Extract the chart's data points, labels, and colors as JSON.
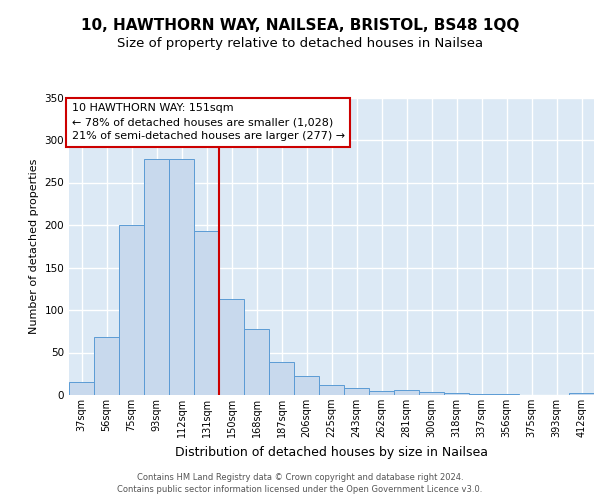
{
  "title1": "10, HAWTHORN WAY, NAILSEA, BRISTOL, BS48 1QQ",
  "title2": "Size of property relative to detached houses in Nailsea",
  "xlabel": "Distribution of detached houses by size in Nailsea",
  "ylabel": "Number of detached properties",
  "bin_labels": [
    "37sqm",
    "56sqm",
    "75sqm",
    "93sqm",
    "112sqm",
    "131sqm",
    "150sqm",
    "168sqm",
    "187sqm",
    "206sqm",
    "225sqm",
    "243sqm",
    "262sqm",
    "281sqm",
    "300sqm",
    "318sqm",
    "337sqm",
    "356sqm",
    "375sqm",
    "393sqm",
    "412sqm"
  ],
  "bin_values": [
    15,
    68,
    200,
    278,
    278,
    193,
    113,
    78,
    39,
    22,
    12,
    8,
    5,
    6,
    4,
    2,
    1,
    1,
    0,
    0,
    2
  ],
  "bar_color": "#c8d9ed",
  "bar_edge_color": "#5b9bd5",
  "red_line_index": 6,
  "ylim": [
    0,
    350
  ],
  "yticks": [
    0,
    50,
    100,
    150,
    200,
    250,
    300,
    350
  ],
  "annotation_title": "10 HAWTHORN WAY: 151sqm",
  "annotation_line1": "← 78% of detached houses are smaller (1,028)",
  "annotation_line2": "21% of semi-detached houses are larger (277) →",
  "footer1": "Contains HM Land Registry data © Crown copyright and database right 2024.",
  "footer2": "Contains public sector information licensed under the Open Government Licence v3.0.",
  "bg_color": "#ffffff",
  "plot_bg_color": "#dce9f5",
  "grid_color": "#ffffff",
  "title1_fontsize": 11,
  "title2_fontsize": 9.5,
  "ylabel_fontsize": 8,
  "xlabel_fontsize": 9,
  "annotation_fontsize": 8,
  "tick_fontsize": 7,
  "footer_fontsize": 6,
  "annotation_box_color": "#ffffff",
  "annotation_box_edge": "#cc0000",
  "red_line_color": "#cc0000"
}
